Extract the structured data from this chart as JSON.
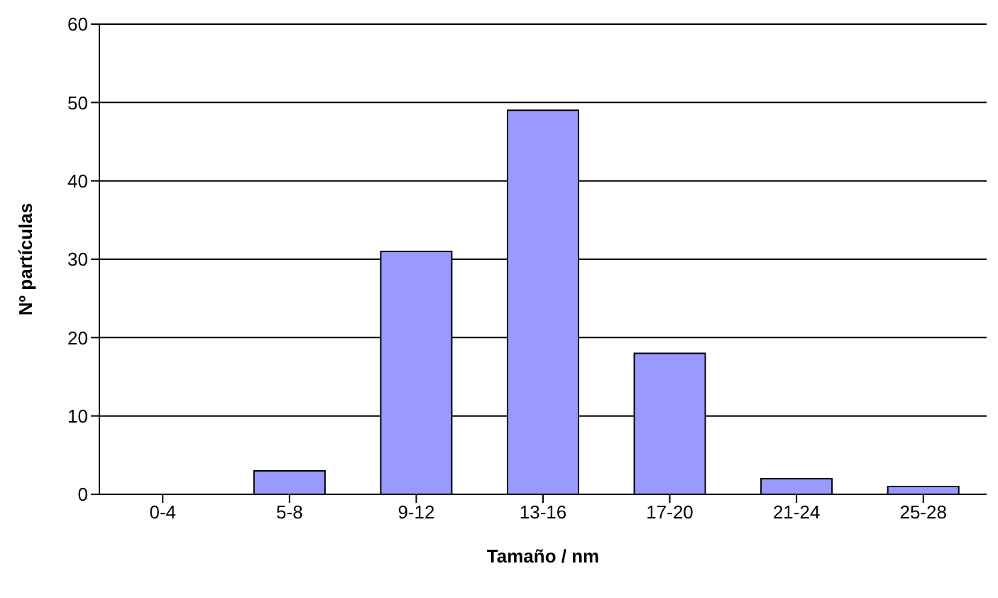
{
  "chart_data": {
    "type": "bar",
    "xlabel": "Tamaño / nm",
    "ylabel": "Nº partículas",
    "categories": [
      "0-4",
      "5-8",
      "9-12",
      "13-16",
      "17-20",
      "21-24",
      "25-28"
    ],
    "values": [
      0,
      3,
      31,
      49,
      18,
      2,
      1
    ],
    "color": "#9999ff",
    "ylim": [
      0,
      60
    ],
    "yticks": [
      0,
      10,
      20,
      30,
      40,
      50,
      60
    ],
    "grid": "y"
  }
}
